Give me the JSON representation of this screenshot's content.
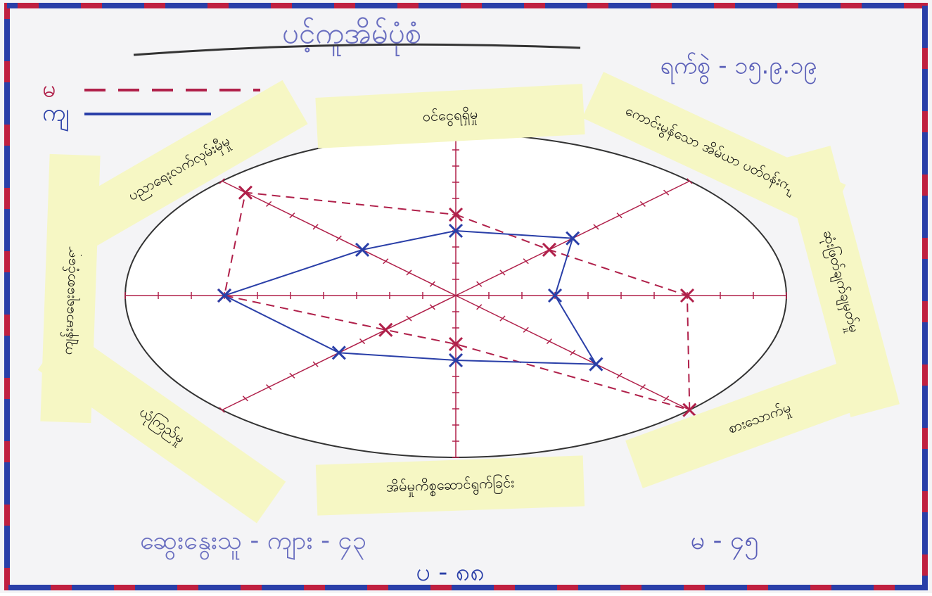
{
  "chart_data": {
    "type": "radar",
    "title": "ပင့်ကူအိမ်ပုံစံ",
    "subtitle": "ရက်စွဲ - ၁၅.၉.၁၉",
    "categories": [
      "ဝင်ငွေရရှိမှု",
      "ကောင်းမွန်သော အိမ်ယာ ပတ်ဝန်းကျင်",
      "ဆုံးဖြတ်ချက်ချမှတ်မှု",
      "စားသောက်မှု",
      "အိမ်မှုကိစ္စဆောင်ရွက်ခြင်း",
      "ယုံကြည်မှု",
      "ကျန်းမာရေးစောင့်ရှောက်မှု",
      "ပညာရေးလက်လှမ်းမှီမှု"
    ],
    "series": [
      {
        "name": "မ",
        "color": "#b0204a",
        "values": [
          5,
          4,
          7,
          10,
          3,
          3,
          7,
          9
        ]
      },
      {
        "name": "ကျ",
        "color": "#2a3fa8",
        "values": [
          4,
          5,
          3,
          6,
          4,
          5,
          7,
          4
        ]
      }
    ],
    "rlim": [
      0,
      10
    ],
    "rticks": [
      1,
      2,
      3,
      4,
      5,
      6,
      7,
      8,
      9,
      10
    ],
    "annotations": [
      "ဆွေးနွေးသူ - ကျား - ၄၃",
      "မ - ၄၅",
      "ပ - ၈၈"
    ]
  }
}
